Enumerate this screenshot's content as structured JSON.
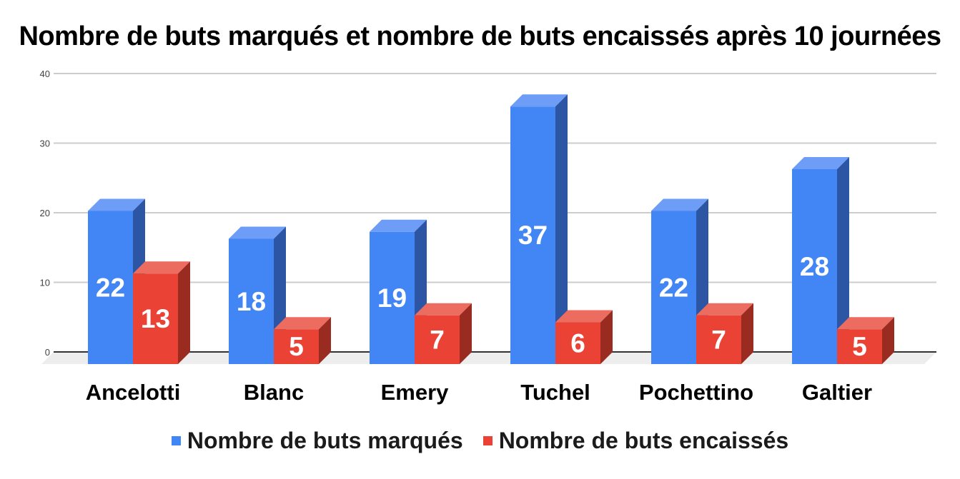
{
  "title": "Nombre de buts marqués et nombre de buts encaissés après 10 journées",
  "chart_data": {
    "type": "bar",
    "style": "3d-columns",
    "title": "Nombre de buts marqués et nombre de buts encaissés après 10 journées",
    "categories": [
      "Ancelotti",
      "Blanc",
      "Emery",
      "Tuchel",
      "Pochettino",
      "Galtier"
    ],
    "series": [
      {
        "name": "Nombre de buts marqués",
        "values": [
          22,
          18,
          19,
          37,
          22,
          28
        ],
        "color": "#4285F4",
        "color_top": "#6D9DF6",
        "color_side": "#2C56A4"
      },
      {
        "name": "Nombre de buts encaissés",
        "values": [
          13,
          5,
          7,
          6,
          7,
          5
        ],
        "color": "#EA4335",
        "color_top": "#ED6C60",
        "color_side": "#9A2B21"
      }
    ],
    "y_ticks": [
      0,
      10,
      20,
      30,
      40
    ],
    "ylim": [
      0,
      40
    ],
    "grid": true,
    "legend_position": "bottom",
    "data_labels": {
      "show": true,
      "color": "#FFFFFF"
    },
    "colors": {
      "gridline": "#CCCCCC",
      "baseline": "#333333",
      "floor": "#EDEDED",
      "tick_text": "#424242",
      "background": "#FFFFFF"
    }
  }
}
